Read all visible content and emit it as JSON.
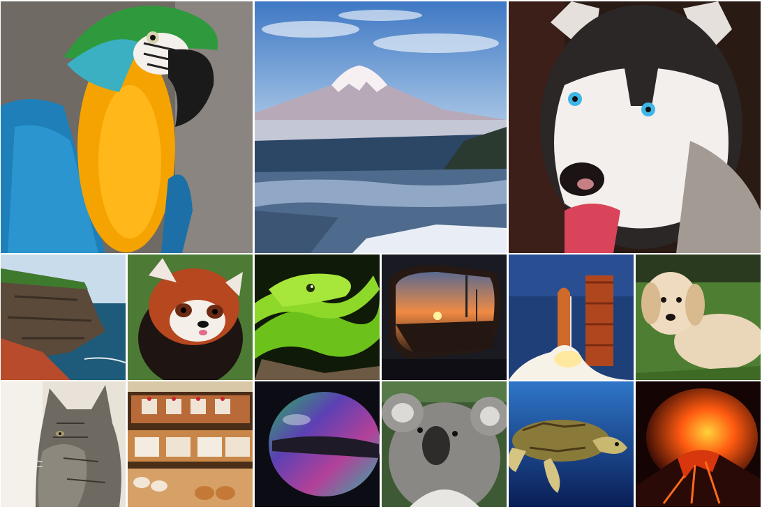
{
  "collage": {
    "tiles": [
      {
        "id": "parrot",
        "subject": "macaw-parrot"
      },
      {
        "id": "mountain",
        "subject": "snow-capped-mountain"
      },
      {
        "id": "husky",
        "subject": "husky-dog"
      },
      {
        "id": "cliffs",
        "subject": "coastal-cliffs"
      },
      {
        "id": "red-panda",
        "subject": "red-panda"
      },
      {
        "id": "snake",
        "subject": "green-snake"
      },
      {
        "id": "mirror",
        "subject": "car-side-mirror-sunset"
      },
      {
        "id": "shuttle",
        "subject": "space-shuttle-launch"
      },
      {
        "id": "puppy",
        "subject": "golden-retriever-puppy"
      },
      {
        "id": "cat",
        "subject": "tabby-cat"
      },
      {
        "id": "pastries",
        "subject": "pastry-display-case"
      },
      {
        "id": "bubble",
        "subject": "soap-bubble"
      },
      {
        "id": "koala",
        "subject": "koala"
      },
      {
        "id": "turtle",
        "subject": "sea-turtle"
      },
      {
        "id": "volcano",
        "subject": "erupting-volcano"
      }
    ]
  }
}
